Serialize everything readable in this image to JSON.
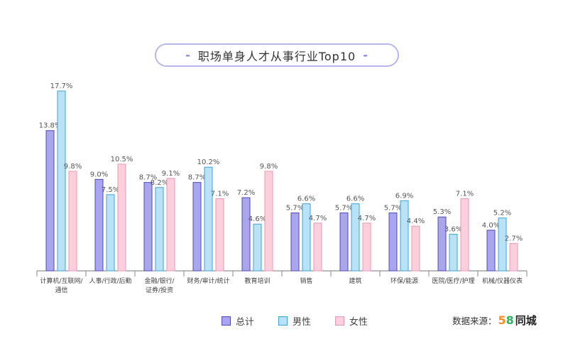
{
  "title": "职场单身人才从事行业Top10",
  "colors": {
    "total": "#a9a6ee",
    "male": "#b9e2f6",
    "female": "#fbd0dc",
    "total_stroke": "#4e4ab8",
    "male_stroke": "#3ea3d8",
    "female_stroke": "#e899b3"
  },
  "legend": [
    "总计",
    "男性",
    "女性"
  ],
  "source": {
    "label": "数据来源：",
    "logo_num": "58",
    "logo_text": "同城"
  },
  "chart_data": {
    "type": "bar",
    "title": "职场单身人才从事行业Top10",
    "categories": [
      [
        "计算机/互联网/",
        "通信"
      ],
      [
        "人事/行政/后勤"
      ],
      [
        "金融/银行/",
        "证券/投资"
      ],
      [
        "财务/审计/统计"
      ],
      [
        "教育培训"
      ],
      [
        "销售"
      ],
      [
        "建筑"
      ],
      [
        "环保/能源"
      ],
      [
        "医院/医疗/护理"
      ],
      [
        "机械/仪器仪表"
      ]
    ],
    "series": [
      {
        "name": "总计",
        "values": [
          13.8,
          9.0,
          8.7,
          8.7,
          7.2,
          5.7,
          5.7,
          5.7,
          5.3,
          4.0
        ],
        "labels": [
          "13.8%",
          "9.0%",
          "8.7%",
          "8.7%",
          "7.2%",
          "5.7%",
          "5.7%",
          "5.7%",
          "5.3%",
          "4.0%"
        ]
      },
      {
        "name": "男性",
        "values": [
          17.7,
          7.5,
          8.2,
          10.2,
          4.6,
          6.6,
          6.6,
          6.9,
          3.6,
          5.2
        ],
        "labels": [
          "17.7%",
          "7.5%",
          "8.2%",
          "10.2%",
          "4.6%",
          "6.6%",
          "6.6%",
          "6.9%",
          "3.6%",
          "5.2%"
        ]
      },
      {
        "name": "女性",
        "values": [
          9.8,
          10.5,
          9.1,
          7.1,
          9.8,
          4.7,
          4.7,
          4.4,
          7.1,
          2.7
        ],
        "labels": [
          "9.8%",
          "10.5%",
          "9.1%",
          "7.1%",
          "9.8%",
          "4.7%",
          "4.7%",
          "4.4%",
          "7.1%",
          "2.7%"
        ]
      }
    ],
    "ylim": [
      0,
      20
    ],
    "grid": false,
    "legend_position": "bottom"
  }
}
